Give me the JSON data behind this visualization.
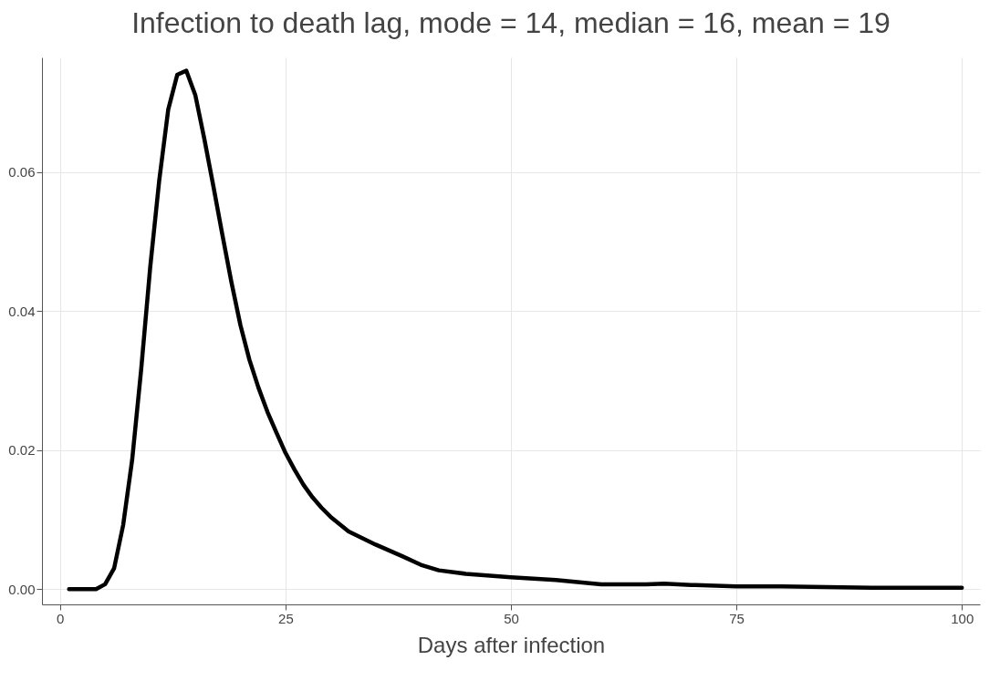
{
  "chart_data": {
    "type": "line",
    "title": "Infection to death lag, mode = 14, median = 16, mean = 19",
    "xlabel": "Days after infection",
    "x": [
      1,
      2,
      3,
      4,
      5,
      6,
      7,
      8,
      9,
      10,
      11,
      12,
      13,
      14,
      15,
      16,
      17,
      18,
      19,
      20,
      21,
      22,
      23,
      24,
      25,
      26,
      27,
      28,
      29,
      30,
      32,
      35,
      38,
      40,
      42,
      45,
      50,
      55,
      60,
      65,
      67,
      70,
      75,
      80,
      90,
      100
    ],
    "series": [
      {
        "color": "#000000",
        "values": [
          0,
          0,
          0,
          0,
          0.0007,
          0.003,
          0.0092,
          0.0186,
          0.0316,
          0.0463,
          0.0588,
          0.069,
          0.074,
          0.0746,
          0.0711,
          0.0648,
          0.058,
          0.051,
          0.0442,
          0.038,
          0.033,
          0.029,
          0.0255,
          0.0225,
          0.0196,
          0.0172,
          0.015,
          0.0132,
          0.0117,
          0.0104,
          0.0083,
          0.0064,
          0.0047,
          0.0035,
          0.0027,
          0.0022,
          0.0017,
          0.0013,
          0.0007,
          0.0007,
          0.0008,
          0.0006,
          0.0004,
          0.0004,
          0.0002,
          0.0002
        ]
      }
    ],
    "xlim": [
      -2,
      102
    ],
    "xticks": [
      0,
      25,
      50,
      75,
      100
    ],
    "ylim": [
      -0.0022,
      0.0765
    ],
    "yticks": [
      {
        "value": 0,
        "label": "0.00"
      },
      {
        "value": 0.02,
        "label": "0.02"
      },
      {
        "value": 0.04,
        "label": "0.04"
      },
      {
        "value": 0.06,
        "label": "0.06"
      }
    ],
    "grid": true,
    "marker": "none",
    "line_style": "solid"
  }
}
